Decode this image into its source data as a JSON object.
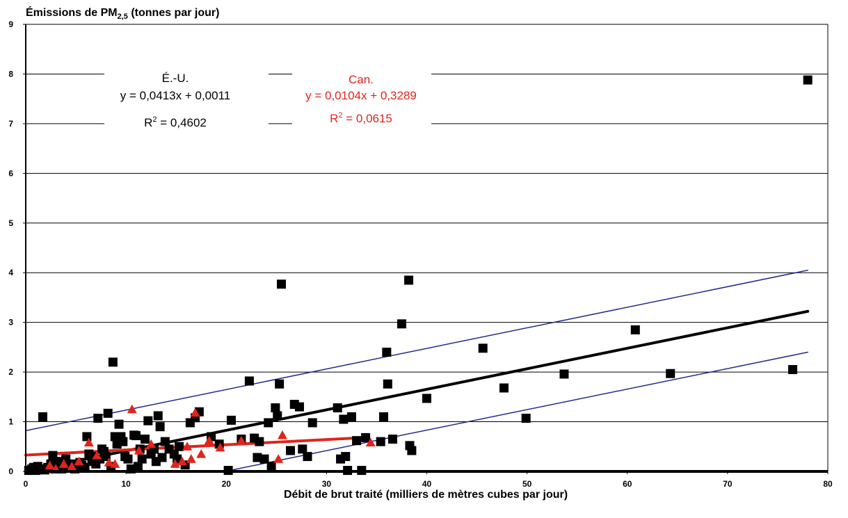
{
  "chart_data": {
    "type": "scatter",
    "ylabel": "Émissions de PM",
    "ylabel_subscript": "2,5",
    "ylabel_suffix": " (tonnes par jour)",
    "xlabel": "Débit de brut traité (milliers de mètres cubes par jour)",
    "xlim": [
      0,
      80
    ],
    "ylim": [
      0,
      9
    ],
    "xticks": [
      0,
      10,
      20,
      30,
      40,
      50,
      60,
      70,
      80
    ],
    "yticks": [
      0,
      1,
      2,
      3,
      4,
      5,
      6,
      7,
      8,
      9
    ],
    "grid": "horizontal",
    "colors": {
      "us": "#000000",
      "canada": "#e0241b",
      "bands": "#1f2a8c",
      "grid": "#000000"
    },
    "annotations": {
      "us": {
        "label": "É.-U.",
        "equation": "y = 0,0413x + 0,0011",
        "r2_prefix": "R",
        "r2_value": " = 0,4602",
        "color": "#000000"
      },
      "canada": {
        "label": "Can.",
        "equation": "y = 0,0104x + 0,3289",
        "r2_prefix": "R",
        "r2_value": " = 0,0615",
        "color": "#e0241b"
      }
    },
    "series": [
      {
        "name": "É.-U.",
        "marker": "square",
        "color": "#000000",
        "points": [
          [
            0.3,
            0.02
          ],
          [
            0.6,
            0.05
          ],
          [
            0.8,
            0.08
          ],
          [
            1.0,
            0.02
          ],
          [
            1.2,
            0.1
          ],
          [
            1.5,
            0.05
          ],
          [
            1.7,
            1.1
          ],
          [
            1.9,
            0.03
          ],
          [
            2.2,
            0.08
          ],
          [
            2.5,
            0.15
          ],
          [
            2.7,
            0.32
          ],
          [
            2.9,
            0.05
          ],
          [
            3.1,
            0.1
          ],
          [
            3.3,
            0.2
          ],
          [
            3.6,
            0.05
          ],
          [
            3.8,
            0.12
          ],
          [
            4.0,
            0.25
          ],
          [
            4.3,
            0.08
          ],
          [
            4.6,
            0.15
          ],
          [
            4.9,
            0.05
          ],
          [
            5.1,
            0.1
          ],
          [
            5.4,
            0.18
          ],
          [
            5.6,
            0.12
          ],
          [
            5.9,
            0.08
          ],
          [
            6.1,
            0.7
          ],
          [
            6.3,
            0.35
          ],
          [
            6.6,
            0.2
          ],
          [
            6.8,
            0.3
          ],
          [
            7.0,
            0.15
          ],
          [
            7.2,
            1.07
          ],
          [
            7.4,
            0.25
          ],
          [
            7.6,
            0.45
          ],
          [
            7.8,
            0.4
          ],
          [
            8.0,
            0.3
          ],
          [
            8.2,
            1.17
          ],
          [
            8.5,
            0.1
          ],
          [
            8.7,
            2.2
          ],
          [
            8.9,
            0.7
          ],
          [
            9.1,
            0.55
          ],
          [
            9.3,
            0.95
          ],
          [
            9.5,
            0.7
          ],
          [
            9.7,
            0.6
          ],
          [
            9.9,
            0.3
          ],
          [
            10.2,
            0.25
          ],
          [
            10.5,
            0.05
          ],
          [
            10.8,
            0.73
          ],
          [
            11.0,
            0.72
          ],
          [
            11.2,
            0.1
          ],
          [
            11.4,
            0.45
          ],
          [
            11.6,
            0.25
          ],
          [
            11.9,
            0.65
          ],
          [
            12.2,
            1.02
          ],
          [
            12.5,
            0.35
          ],
          [
            12.8,
            0.45
          ],
          [
            13.0,
            0.2
          ],
          [
            13.2,
            1.12
          ],
          [
            13.4,
            0.9
          ],
          [
            13.6,
            0.28
          ],
          [
            13.9,
            0.6
          ],
          [
            14.3,
            0.45
          ],
          [
            14.8,
            0.35
          ],
          [
            15.1,
            0.25
          ],
          [
            15.3,
            0.5
          ],
          [
            15.9,
            0.13
          ],
          [
            16.4,
            0.98
          ],
          [
            16.9,
            1.08
          ],
          [
            17.3,
            1.2
          ],
          [
            18.5,
            0.7
          ],
          [
            19.3,
            0.55
          ],
          [
            20.2,
            0.02
          ],
          [
            20.5,
            1.03
          ],
          [
            21.5,
            0.65
          ],
          [
            22.3,
            1.82
          ],
          [
            22.8,
            0.67
          ],
          [
            23.1,
            0.28
          ],
          [
            23.3,
            0.6
          ],
          [
            23.8,
            0.25
          ],
          [
            24.2,
            0.98
          ],
          [
            24.5,
            0.1
          ],
          [
            24.9,
            1.28
          ],
          [
            25.1,
            1.12
          ],
          [
            25.3,
            1.76
          ],
          [
            25.5,
            3.77
          ],
          [
            26.4,
            0.42
          ],
          [
            26.8,
            1.35
          ],
          [
            27.3,
            1.3
          ],
          [
            27.6,
            0.45
          ],
          [
            28.1,
            0.3
          ],
          [
            28.6,
            0.98
          ],
          [
            31.1,
            1.28
          ],
          [
            31.4,
            0.25
          ],
          [
            31.7,
            1.05
          ],
          [
            31.9,
            0.3
          ],
          [
            32.1,
            0.02
          ],
          [
            32.5,
            1.1
          ],
          [
            33.0,
            0.62
          ],
          [
            33.5,
            0.02
          ],
          [
            33.9,
            0.68
          ],
          [
            35.4,
            0.6
          ],
          [
            35.7,
            1.1
          ],
          [
            36.0,
            2.4
          ],
          [
            36.1,
            1.76
          ],
          [
            36.6,
            0.65
          ],
          [
            37.5,
            2.97
          ],
          [
            38.2,
            3.85
          ],
          [
            38.3,
            0.52
          ],
          [
            38.5,
            0.42
          ],
          [
            40.0,
            1.47
          ],
          [
            45.6,
            2.48
          ],
          [
            47.7,
            1.68
          ],
          [
            49.9,
            1.07
          ],
          [
            53.7,
            1.96
          ],
          [
            60.8,
            2.85
          ],
          [
            64.3,
            1.97
          ],
          [
            76.5,
            2.05
          ],
          [
            78.0,
            7.88
          ]
        ]
      },
      {
        "name": "Can.",
        "marker": "triangle",
        "color": "#e0241b",
        "points": [
          [
            2.4,
            0.12
          ],
          [
            3.0,
            0.05
          ],
          [
            3.8,
            0.15
          ],
          [
            4.6,
            0.1
          ],
          [
            5.3,
            0.2
          ],
          [
            6.3,
            0.58
          ],
          [
            7.1,
            0.32
          ],
          [
            8.3,
            0.18
          ],
          [
            8.9,
            0.15
          ],
          [
            10.6,
            1.25
          ],
          [
            11.3,
            0.42
          ],
          [
            12.5,
            0.55
          ],
          [
            14.9,
            0.15
          ],
          [
            15.6,
            0.2
          ],
          [
            16.1,
            0.5
          ],
          [
            16.5,
            0.25
          ],
          [
            16.9,
            1.18
          ],
          [
            17.5,
            0.35
          ],
          [
            18.3,
            0.62
          ],
          [
            19.4,
            0.48
          ],
          [
            21.5,
            0.62
          ],
          [
            25.2,
            0.25
          ],
          [
            25.6,
            0.73
          ],
          [
            34.4,
            0.58
          ]
        ]
      }
    ],
    "trendlines": [
      {
        "name": "É.-U.",
        "slope": 0.0413,
        "intercept": 0.0011,
        "x_range": [
          0,
          78
        ],
        "color": "#000000"
      },
      {
        "name": "Can.",
        "slope": 0.0104,
        "intercept": 0.3289,
        "x_range": [
          0,
          34
        ],
        "color": "#e0241b"
      },
      {
        "name": "upper-band",
        "x_range": [
          0,
          78
        ],
        "y_range": [
          0.82,
          4.05
        ],
        "color": "#1f2a8c"
      },
      {
        "name": "lower-band",
        "x_range": [
          0,
          78
        ],
        "y_range": [
          -0.82,
          2.4
        ],
        "color": "#1f2a8c"
      }
    ]
  }
}
